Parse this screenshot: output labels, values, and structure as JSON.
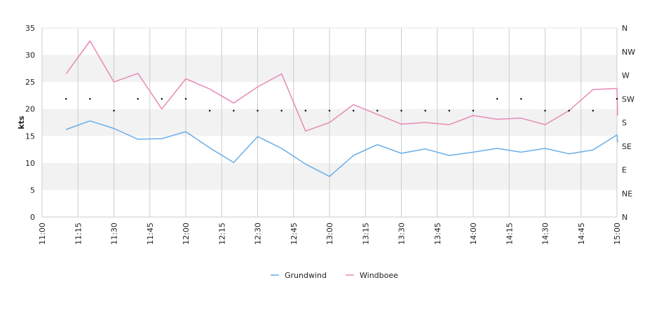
{
  "chart_data": {
    "type": "line",
    "title": "",
    "xlabel": "",
    "ylabel": "kts",
    "ylim": [
      0,
      35
    ],
    "yticks": [
      "0",
      "5",
      "10",
      "15",
      "20",
      "25",
      "30",
      "35"
    ],
    "x_ticks": [
      "11:00",
      "11:15",
      "11:30",
      "11:45",
      "12:00",
      "12:15",
      "12:30",
      "12:45",
      "13:00",
      "13:15",
      "13:30",
      "13:45",
      "14:00",
      "14:15",
      "14:30",
      "14:45",
      "15:00"
    ],
    "xlim": [
      "11:00",
      "15:00"
    ],
    "right_axis": {
      "labels": [
        "N",
        "NE",
        "E",
        "SE",
        "S",
        "SW",
        "W",
        "NW",
        "N"
      ],
      "range_degrees": [
        0,
        360
      ]
    },
    "grid": {
      "vertical": true,
      "horizontal_bands": true
    },
    "legend_position": "bottom-center",
    "series": [
      {
        "name": "Grundwind",
        "color": "#6aaee8",
        "points": [
          [
            "11:10",
            16.2
          ],
          [
            "11:20",
            17.8
          ],
          [
            "11:30",
            16.4
          ],
          [
            "11:40",
            14.4
          ],
          [
            "11:50",
            14.5
          ],
          [
            "12:00",
            15.8
          ],
          [
            "12:10",
            12.8
          ],
          [
            "12:20",
            10.1
          ],
          [
            "12:30",
            14.9
          ],
          [
            "12:40",
            12.7
          ],
          [
            "12:50",
            9.8
          ],
          [
            "13:00",
            7.5
          ],
          [
            "13:10",
            11.4
          ],
          [
            "13:20",
            13.4
          ],
          [
            "13:30",
            11.8
          ],
          [
            "13:40",
            12.6
          ],
          [
            "13:50",
            11.4
          ],
          [
            "14:00",
            12.0
          ],
          [
            "14:10",
            12.7
          ],
          [
            "14:20",
            12.0
          ],
          [
            "14:30",
            12.7
          ],
          [
            "14:40",
            11.7
          ],
          [
            "14:50",
            12.4
          ],
          [
            "15:00",
            15.2
          ],
          [
            "15:00",
            13.8
          ]
        ]
      },
      {
        "name": "Windboee",
        "color": "#e88ab5",
        "points": [
          [
            "11:10",
            26.5
          ],
          [
            "11:20",
            32.6
          ],
          [
            "11:30",
            25.0
          ],
          [
            "11:40",
            26.6
          ],
          [
            "11:50",
            20.0
          ],
          [
            "12:00",
            25.6
          ],
          [
            "12:10",
            23.7
          ],
          [
            "12:20",
            21.1
          ],
          [
            "12:30",
            24.1
          ],
          [
            "12:40",
            26.5
          ],
          [
            "12:50",
            15.9
          ],
          [
            "13:00",
            17.5
          ],
          [
            "13:10",
            20.8
          ],
          [
            "13:20",
            19.0
          ],
          [
            "13:30",
            17.2
          ],
          [
            "13:40",
            17.5
          ],
          [
            "13:50",
            17.1
          ],
          [
            "14:00",
            18.8
          ],
          [
            "14:10",
            18.1
          ],
          [
            "14:20",
            18.3
          ],
          [
            "14:30",
            17.1
          ],
          [
            "14:40",
            19.7
          ],
          [
            "14:50",
            23.6
          ],
          [
            "15:00",
            23.8
          ],
          [
            "15:00",
            18.8
          ]
        ]
      },
      {
        "name": "",
        "kind": "direction",
        "color": "#000000",
        "points": [
          [
            "11:10",
            225
          ],
          [
            "11:20",
            225
          ],
          [
            "11:30",
            202.5
          ],
          [
            "11:40",
            225
          ],
          [
            "11:50",
            225
          ],
          [
            "12:00",
            225
          ],
          [
            "12:10",
            202.5
          ],
          [
            "12:20",
            202.5
          ],
          [
            "12:30",
            202.5
          ],
          [
            "12:40",
            202.5
          ],
          [
            "12:50",
            202.5
          ],
          [
            "13:00",
            202.5
          ],
          [
            "13:10",
            202.5
          ],
          [
            "13:20",
            202.5
          ],
          [
            "13:30",
            202.5
          ],
          [
            "13:40",
            202.5
          ],
          [
            "13:50",
            202.5
          ],
          [
            "14:00",
            202.5
          ],
          [
            "14:10",
            225
          ],
          [
            "14:20",
            225
          ],
          [
            "14:30",
            202.5
          ],
          [
            "14:40",
            202.5
          ],
          [
            "14:50",
            202.5
          ],
          [
            "15:00",
            225
          ]
        ]
      }
    ]
  }
}
